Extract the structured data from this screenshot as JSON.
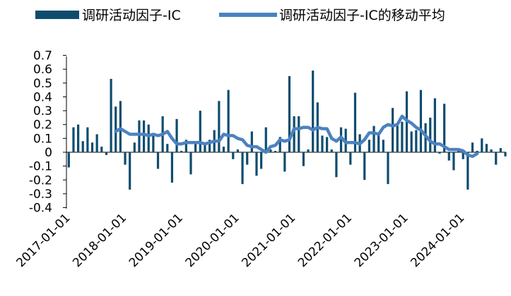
{
  "chart_data": {
    "type": "bar+line",
    "legend": [
      {
        "name": "调研活动因子-IC",
        "kind": "bar",
        "color": "#0E4C6E"
      },
      {
        "name": "调研活动因子-IC的移动平均",
        "kind": "line",
        "color": "#4C82C0"
      }
    ],
    "x_start": "2017-01",
    "x_ticks": [
      "2017-01-01",
      "2018-01-01",
      "2019-01-01",
      "2020-01-01",
      "2021-01-01",
      "2022-01-01",
      "2023-01-01",
      "2024-01-01"
    ],
    "y_ticks": [
      "0.7",
      "0.6",
      "0.5",
      "0.4",
      "0.3",
      "0.2",
      "0.1",
      "0",
      "-0.1",
      "-0.2",
      "-0.3",
      "-0.4"
    ],
    "ylim": [
      -0.4,
      0.7
    ],
    "legend_position": "top",
    "series": [
      {
        "name": "调研活动因子-IC",
        "values": [
          -0.11,
          0.18,
          0.2,
          0.08,
          0.18,
          0.07,
          0.13,
          0.04,
          -0.02,
          0.53,
          0.33,
          0.37,
          -0.09,
          -0.27,
          0.07,
          0.23,
          0.23,
          0.2,
          0.12,
          -0.12,
          0.26,
          0.06,
          -0.22,
          0.24,
          0.01,
          0.09,
          -0.16,
          0.06,
          0.3,
          0.06,
          0.09,
          0.16,
          0.37,
          0.04,
          0.45,
          -0.05,
          0.02,
          -0.23,
          -0.09,
          0.15,
          -0.17,
          -0.12,
          0.18,
          0.02,
          0.01,
          0.11,
          -0.14,
          0.55,
          0.26,
          0.26,
          -0.1,
          0.02,
          0.59,
          0.36,
          0.12,
          0.11,
          0.02,
          -0.18,
          0.18,
          0.17,
          -0.09,
          0.43,
          0.13,
          -0.2,
          0.09,
          0.19,
          0.13,
          0.09,
          -0.23,
          0.32,
          0.19,
          0.22,
          0.44,
          0.15,
          0.16,
          0.45,
          0.21,
          0.25,
          0.39,
          -0.01,
          0.35,
          -0.06,
          -0.13,
          0.03,
          -0.05,
          -0.27,
          0.07,
          0.01,
          0.1,
          0.06,
          0.02,
          -0.09,
          0.03,
          -0.03
        ]
      },
      {
        "name": "调研活动因子-IC的移动平均",
        "start_index": 10,
        "values": [
          0.15,
          0.17,
          0.15,
          0.13,
          0.13,
          0.13,
          0.13,
          0.12,
          0.13,
          0.12,
          0.13,
          0.15,
          0.1,
          0.06,
          0.06,
          0.07,
          0.07,
          0.07,
          0.07,
          0.06,
          0.07,
          0.08,
          0.08,
          0.13,
          0.12,
          0.12,
          0.1,
          0.09,
          0.05,
          0.04,
          0.04,
          0.02,
          0.0,
          0.04,
          0.05,
          0.09,
          0.08,
          0.09,
          0.17,
          0.17,
          0.18,
          0.18,
          0.16,
          0.18,
          0.17,
          0.17,
          0.1,
          0.08,
          0.11,
          0.07,
          0.07,
          0.07,
          0.06,
          0.09,
          0.14,
          0.14,
          0.13,
          0.18,
          0.2,
          0.19,
          0.2,
          0.26,
          0.23,
          0.21,
          0.18,
          0.16,
          0.12,
          0.08,
          0.06,
          0.06,
          0.04,
          0.02,
          0.02,
          0.02,
          0.01,
          -0.02,
          -0.03,
          -0.01
        ]
      }
    ]
  }
}
